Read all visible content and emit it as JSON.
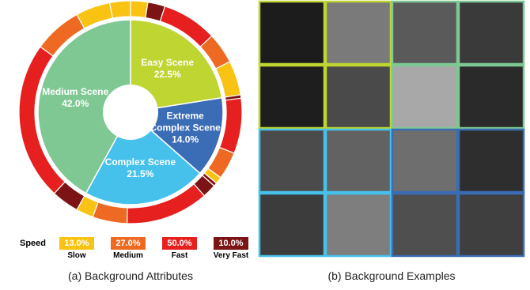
{
  "chart_data": {
    "type": "pie",
    "categories": [
      "Easy Scene",
      "Extreme Complex Scene",
      "Complex Scene",
      "Medium Scene"
    ],
    "values": [
      22.5,
      14.0,
      21.5,
      42.0
    ],
    "value_labels": [
      "22.5%",
      "14.0%",
      "21.5%",
      "42.0%"
    ],
    "colors": [
      "#bfd532",
      "#3b6cb6",
      "#46c1eb",
      "#7fc894"
    ],
    "outer_ring": {
      "values": [
        2.5,
        2.5,
        8,
        4.5,
        5,
        0.5,
        8,
        4,
        1,
        0.5,
        2,
        12,
        5,
        2.5,
        4,
        23,
        7,
        5,
        3
      ],
      "speeds": [
        0,
        3,
        2,
        1,
        0,
        3,
        2,
        1,
        0,
        3,
        3,
        2,
        1,
        0,
        3,
        2,
        1,
        0,
        0
      ]
    },
    "speed": {
      "title": "Speed",
      "categories": [
        "Slow",
        "Medium",
        "Fast",
        "Very Fast"
      ],
      "values": [
        13.0,
        27.0,
        50.0,
        10.0
      ],
      "value_labels": [
        "13.0%",
        "27.0%",
        "50.0%",
        "10.0%"
      ],
      "colors": [
        "#f8c313",
        "#ee6a23",
        "#e5201f",
        "#7c1314"
      ]
    }
  },
  "captions": [
    "(a) Background Attributes",
    "(b) Background Examples"
  ]
}
